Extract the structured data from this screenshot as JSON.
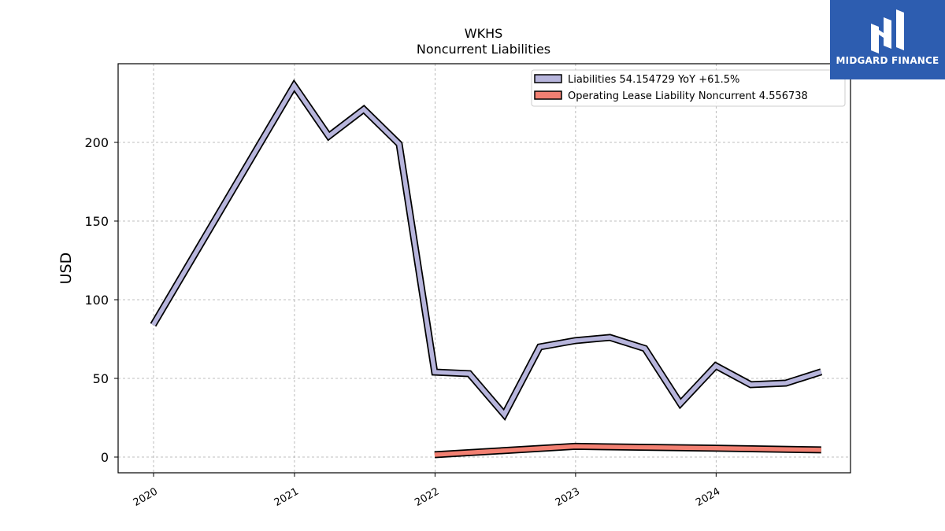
{
  "logo": {
    "text": "MIDGARD FINANCE"
  },
  "chart_data": {
    "type": "line",
    "title": "WKHS",
    "subtitle": "Noncurrent  Liabilities",
    "xlabel": "",
    "ylabel": "USD",
    "xlim": [
      "2019-10-01",
      "2024-12-15"
    ],
    "ylim": [
      -10,
      250
    ],
    "x_ticks": [
      "2020",
      "2021",
      "2022",
      "2023",
      "2024"
    ],
    "y_ticks": [
      0,
      50,
      100,
      150,
      200
    ],
    "grid": true,
    "legend_position": "top-right",
    "series": [
      {
        "name": "Liabilities  54.154729 YoY +61.5%",
        "color": "#b7b5dc",
        "x": [
          "2019-12-31",
          "2020-12-31",
          "2021-03-31",
          "2021-06-30",
          "2021-09-30",
          "2021-12-31",
          "2022-03-31",
          "2022-06-30",
          "2022-09-30",
          "2022-12-31",
          "2023-03-31",
          "2023-06-30",
          "2023-09-30",
          "2023-12-31",
          "2024-03-31",
          "2024-06-30",
          "2024-09-30"
        ],
        "values": [
          84,
          236,
          204,
          221,
          199,
          54,
          53,
          27,
          70,
          74,
          76,
          69,
          34,
          58,
          46,
          47,
          54.154729
        ]
      },
      {
        "name": "Operating Lease Liability Noncurrent  4.556738",
        "color": "#f28072",
        "x": [
          "2021-12-31",
          "2022-12-31",
          "2023-12-31",
          "2024-09-30"
        ],
        "values": [
          1.5,
          6.8,
          5.6,
          4.556738
        ]
      }
    ]
  }
}
